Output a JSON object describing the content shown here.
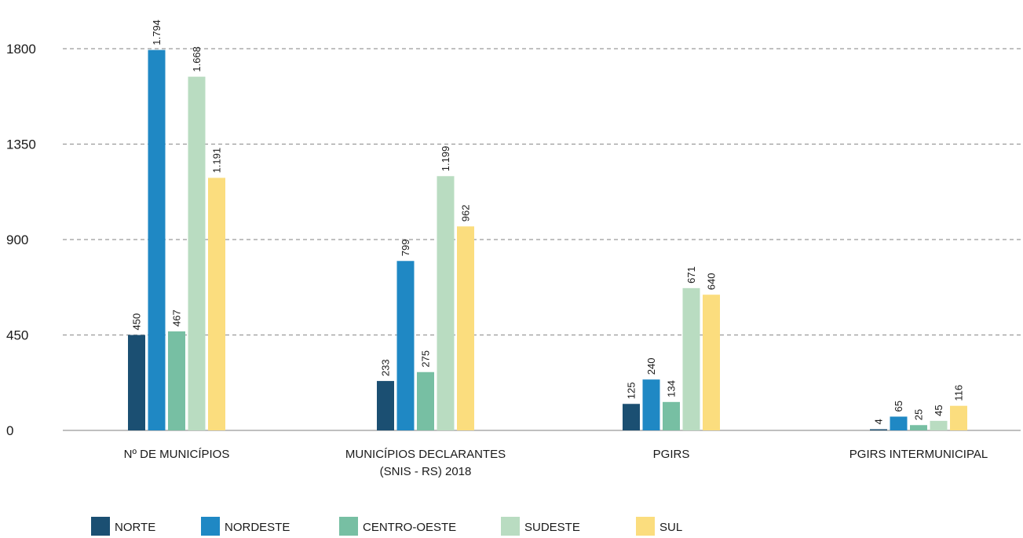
{
  "chart_data": {
    "type": "bar",
    "title": "",
    "xlabel": "",
    "ylabel": "",
    "ylim": [
      0,
      1800
    ],
    "yticks": [
      "0",
      "450",
      "900",
      "1350",
      "1800"
    ],
    "grid": true,
    "legend_position": "bottom",
    "categories": [
      [
        "Nº DE MUNICÍPIOS"
      ],
      [
        "MUNICÍPIOS DECLARANTES",
        "(SNIS - RS) 2018"
      ],
      [
        "PGIRS"
      ],
      [
        "PGIRS INTERMUNICIPAL"
      ]
    ],
    "series": [
      {
        "name": "NORTE",
        "color": "#1b4f72",
        "values": [
          450,
          233,
          125,
          4
        ],
        "labels": [
          "450",
          "233",
          "125",
          "4"
        ]
      },
      {
        "name": "NORDESTE",
        "color": "#1f88c4",
        "values": [
          1794,
          799,
          240,
          65
        ],
        "labels": [
          "1.794",
          "799",
          "240",
          "65"
        ]
      },
      {
        "name": "CENTRO-OESTE",
        "color": "#77bfa3",
        "values": [
          467,
          275,
          134,
          25
        ],
        "labels": [
          "467",
          "275",
          "134",
          "25"
        ]
      },
      {
        "name": "SUDESTE",
        "color": "#b9dcc1",
        "values": [
          1668,
          1199,
          671,
          45
        ],
        "labels": [
          "1.668",
          "1.199",
          "671",
          "45"
        ]
      },
      {
        "name": "SUL",
        "color": "#fbdd7e",
        "values": [
          1191,
          962,
          640,
          116
        ],
        "labels": [
          "1.191",
          "962",
          "640",
          "116"
        ]
      }
    ]
  }
}
